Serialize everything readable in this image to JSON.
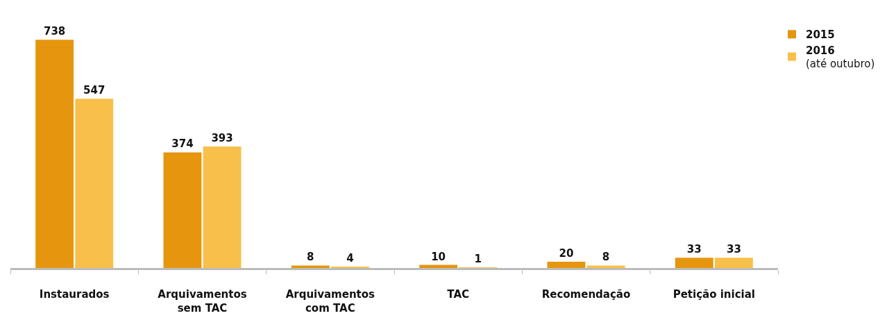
{
  "chart_data": {
    "type": "bar",
    "categories": [
      "Instaurados",
      "Arquivamentos\nsem TAC",
      "Arquivamentos\ncom TAC",
      "TAC",
      "Recomendação",
      "Petição inicial"
    ],
    "series": [
      {
        "name": "2015",
        "color": "#e5960e",
        "values": [
          738,
          374,
          8,
          10,
          20,
          33
        ]
      },
      {
        "name": "2016\n(até outubro)",
        "color": "#f8c04a",
        "values": [
          547,
          393,
          4,
          1,
          8,
          33
        ]
      }
    ],
    "data_labels": true,
    "legend": "top right"
  }
}
